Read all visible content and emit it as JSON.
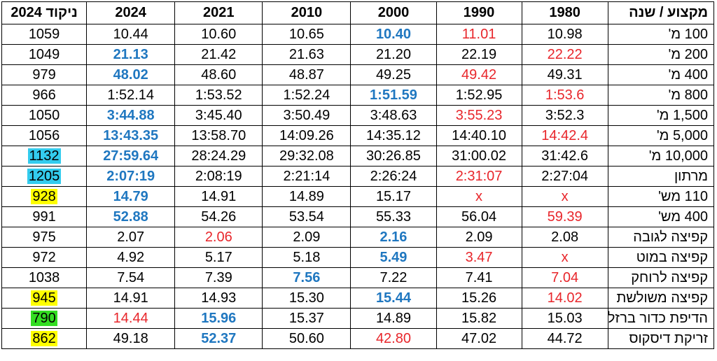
{
  "table": {
    "header": [
      "מקצוע / שנה",
      "1980",
      "1990",
      "2000",
      "2010",
      "2021",
      "2024",
      "ניקוד 2024"
    ],
    "rows": [
      {
        "cells": [
          "100 מ'",
          "10.98",
          "11.01",
          "10.40",
          "10.65",
          "10.60",
          "10.44",
          "1059"
        ],
        "red": [
          2
        ],
        "blue": [
          3
        ]
      },
      {
        "cells": [
          "200 מ'",
          "22.22",
          "22.19",
          "21.20",
          "21.63",
          "21.42",
          "21.13",
          "1049"
        ],
        "red": [
          1
        ],
        "blue": [
          6
        ]
      },
      {
        "cells": [
          "400 מ'",
          "49.31",
          "49.42",
          "49.25",
          "48.87",
          "48.60",
          "48.02",
          "979"
        ],
        "red": [
          2
        ],
        "blue": [
          6
        ]
      },
      {
        "cells": [
          "800 מ'",
          "1:53.6",
          "1:52.95",
          "1:51.59",
          "1:52.24",
          "1:53.52",
          "1:52.14",
          "966"
        ],
        "red": [
          1
        ],
        "blue": [
          3
        ]
      },
      {
        "cells": [
          "1,500 מ'",
          "3:52.3",
          "3:55.23",
          "3:48.63",
          "3:50.49",
          "3:45.40",
          "3:44.88",
          "1050"
        ],
        "red": [
          2
        ],
        "blue": [
          6
        ]
      },
      {
        "cells": [
          "5,000 מ'",
          "14:42.4",
          "14:40.10",
          "14:35.12",
          "14:09.26",
          "13:58.70",
          "13:43.35",
          "1056"
        ],
        "red": [
          1
        ],
        "blue": [
          6
        ]
      },
      {
        "cells": [
          "10,000 מ'",
          "31:42.6",
          "31:00.02",
          "30:26.85",
          "29:32.08",
          "28:24.29",
          "27:59.64",
          "1132"
        ],
        "red": [],
        "blue": [
          6
        ],
        "highlight": "#33ccee"
      },
      {
        "cells": [
          "מרתון",
          "2:27:04",
          "2:31:07",
          "2:26:24",
          "2:21:14",
          "2:08:19",
          "2:07:19",
          "1205"
        ],
        "red": [
          2
        ],
        "blue": [
          6
        ],
        "highlight": "#33ccee"
      },
      {
        "cells": [
          "110 מש'",
          "x",
          "x",
          "15.17",
          "14.89",
          "14.91",
          "14.79",
          "928"
        ],
        "red": [
          1,
          2
        ],
        "blue": [
          6
        ],
        "highlight": "#ffff00"
      },
      {
        "cells": [
          "400 מש'",
          "59.39",
          "56.04",
          "55.33",
          "53.54",
          "54.26",
          "52.88",
          "991"
        ],
        "red": [
          1
        ],
        "blue": [
          6
        ]
      },
      {
        "cells": [
          "קפיצה לגובה",
          "2.08",
          "2.09",
          "2.16",
          "2.09",
          "2.06",
          "2.07",
          "975"
        ],
        "red": [
          5
        ],
        "blue": [
          3
        ]
      },
      {
        "cells": [
          "קפיצה במוט",
          "x",
          "3.47",
          "5.49",
          "5.18",
          "5.17",
          "4.92",
          "972"
        ],
        "red": [
          1,
          2
        ],
        "blue": [
          3
        ]
      },
      {
        "cells": [
          "קפיצה לרוחק",
          "7.04",
          "7.41",
          "7.22",
          "7.56",
          "7.39",
          "7.54",
          "1038"
        ],
        "red": [
          1
        ],
        "blue": [
          4
        ]
      },
      {
        "cells": [
          "קפיצה משולשת",
          "14.02",
          "15.26",
          "15.44",
          "15.30",
          "14.93",
          "14.91",
          "945"
        ],
        "red": [
          1
        ],
        "blue": [
          3
        ],
        "highlight": "#ffff00"
      },
      {
        "cells": [
          "הדיפת כדור ברזל",
          "15.03",
          "15.82",
          "14.89",
          "15.37",
          "15.96",
          "14.44",
          "790"
        ],
        "red": [
          6
        ],
        "blue": [
          5
        ],
        "highlight": "#33dd22"
      },
      {
        "cells": [
          "זריקת דיסקוס",
          "44.72",
          "47.02",
          "42.80",
          "50.60",
          "52.37",
          "49.18",
          "862"
        ],
        "red": [
          3
        ],
        "blue": [
          5
        ],
        "highlight": "#ffff00"
      }
    ]
  }
}
